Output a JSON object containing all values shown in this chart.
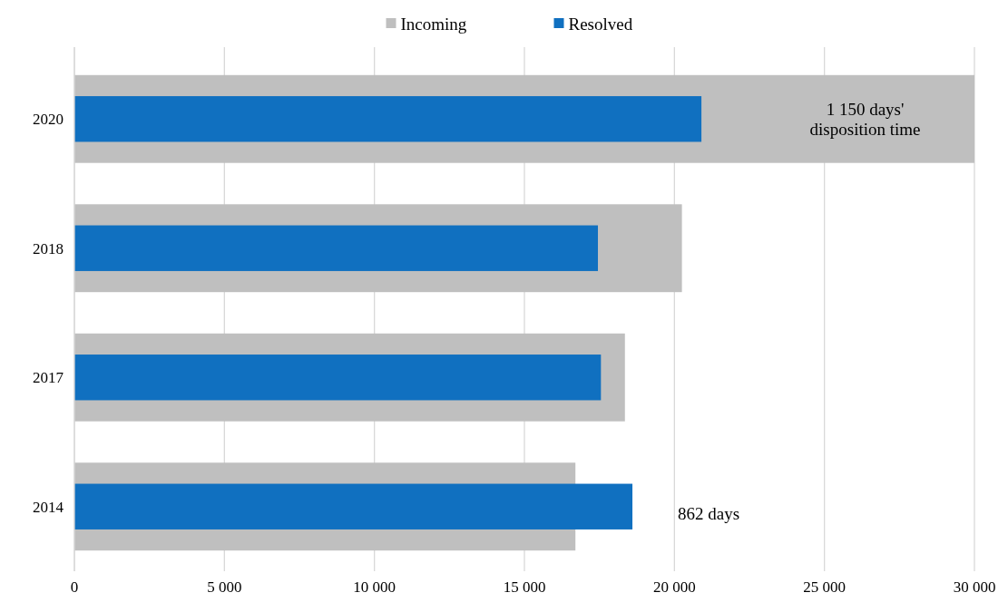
{
  "chart_data": {
    "type": "bar",
    "orientation": "horizontal",
    "categories": [
      "2020",
      "2018",
      "2017",
      "2014"
    ],
    "series": [
      {
        "name": "Incoming",
        "color": "#bfbfbf",
        "values": [
          30000,
          20250,
          18350,
          16700
        ]
      },
      {
        "name": "Resolved",
        "color": "#1070c0",
        "values": [
          20900,
          17450,
          17550,
          18600
        ]
      }
    ],
    "xlim": [
      0,
      30000
    ],
    "xticks": [
      0,
      {
        "value": 5000,
        "label": "5 000"
      },
      {
        "value": 10000,
        "label": "10 000"
      },
      {
        "value": 15000,
        "label": "15 000"
      },
      {
        "value": 20000,
        "label": "20 000"
      },
      {
        "value": 25000,
        "label": "25 000"
      },
      {
        "value": 30000,
        "label": "30 000"
      }
    ],
    "grid": "x",
    "legend": "top",
    "annotations": [
      "1 150 days' disposition time",
      "862 days"
    ]
  }
}
